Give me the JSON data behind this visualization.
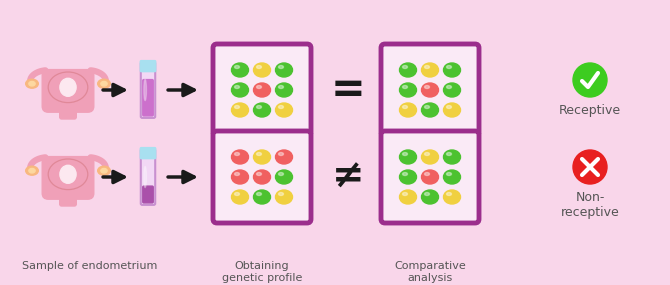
{
  "background_color": "#f9d6ea",
  "box_border_color": "#9b2e8c",
  "box_fill_color": "#faeaf6",
  "arrow_color": "#1a1a1a",
  "label_color": "#555555",
  "green_dot": "#4cc230",
  "yellow_dot": "#f0d040",
  "red_dot": "#f06060",
  "check_circle_color": "#3dcc20",
  "x_circle_color": "#e82020",
  "label_endometrium": "Sample of endometrium",
  "label_genetic": "Obtaining\ngenetic profile",
  "label_comparative": "Comparative\nanalysis",
  "label_receptive": "Receptive",
  "label_nonreceptive": "Non-\nreceptive",
  "row1_grid1": [
    "G",
    "Y",
    "G",
    "G",
    "R",
    "G",
    "Y",
    "G",
    "Y"
  ],
  "row1_grid2": [
    "G",
    "Y",
    "G",
    "G",
    "R",
    "G",
    "Y",
    "G",
    "Y"
  ],
  "row2_grid1": [
    "R",
    "Y",
    "R",
    "R",
    "R",
    "G",
    "Y",
    "G",
    "Y"
  ],
  "row2_grid2": [
    "G",
    "Y",
    "G",
    "G",
    "R",
    "G",
    "Y",
    "G",
    "Y"
  ],
  "uterus_body_color": "#f0a0b8",
  "uterus_inner_color": "#fce8f0",
  "uterus_ovary_color": "#f8b880",
  "tube_fill1_color": "#cc70cc",
  "tube_fill2_color": "#aa50aa",
  "tube_glass_color": "#f2d8f5",
  "tube_cap_color": "#a8e0f0"
}
